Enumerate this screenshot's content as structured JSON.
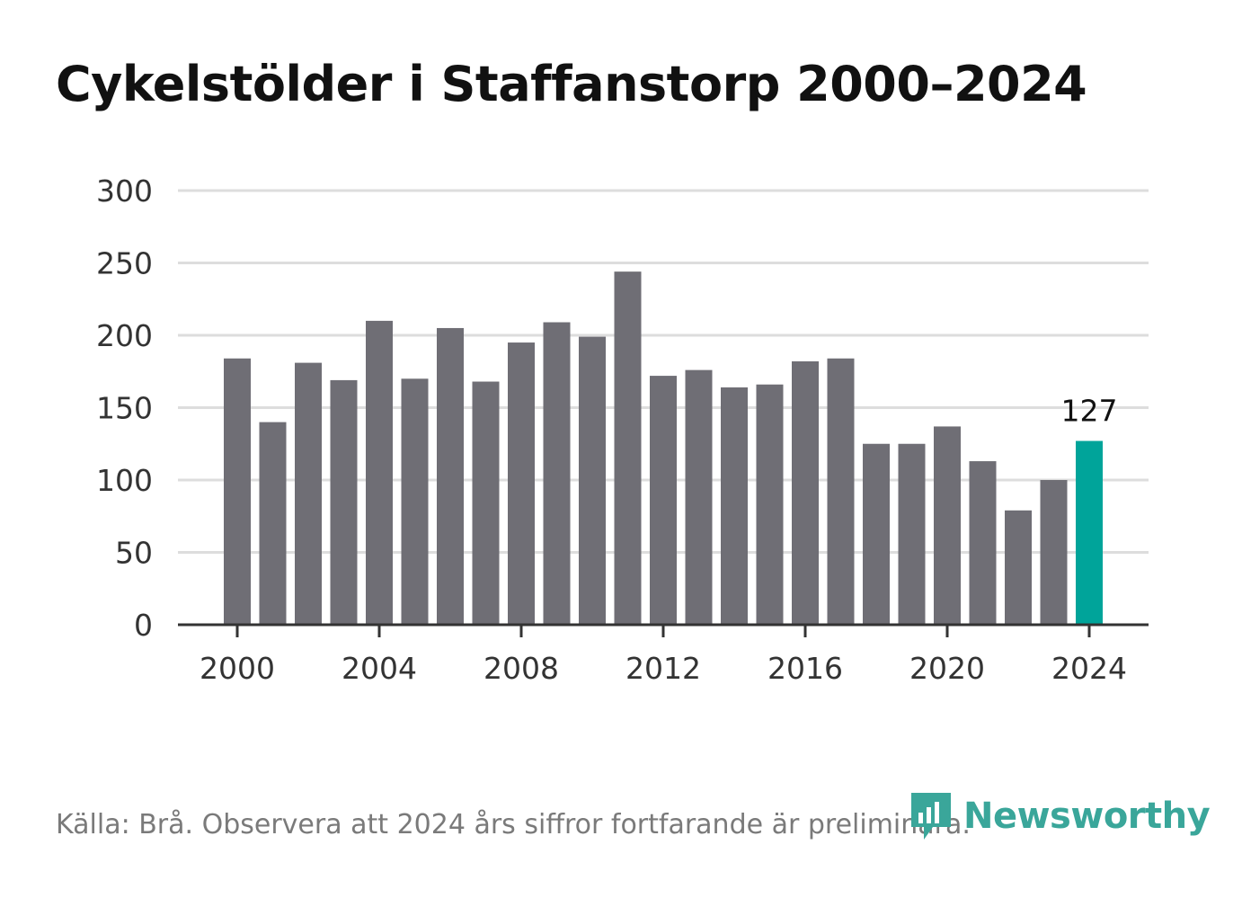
{
  "title": "Cykelstölder i Staffanstorp 2000–2024",
  "source": "Källa: Brå. Observera att 2024 års siffror fortfarande är preliminära.",
  "brand": {
    "name": "Newsworthy",
    "icon": "newsworthy-logo-icon",
    "color": "#3aa69a"
  },
  "colors": {
    "bar": "#6f6e75",
    "highlight": "#00a49a",
    "grid": "#dddddd",
    "axis": "#333333"
  },
  "chart_data": {
    "type": "bar",
    "title": "Cykelstölder i Staffanstorp 2000–2024",
    "xlabel": "",
    "ylabel": "",
    "categories": [
      2000,
      2001,
      2002,
      2003,
      2004,
      2005,
      2006,
      2007,
      2008,
      2009,
      2010,
      2011,
      2012,
      2013,
      2014,
      2015,
      2016,
      2017,
      2018,
      2019,
      2020,
      2021,
      2022,
      2023,
      2024
    ],
    "values": [
      184,
      140,
      181,
      169,
      210,
      170,
      205,
      168,
      195,
      209,
      199,
      244,
      172,
      176,
      164,
      166,
      182,
      184,
      125,
      125,
      137,
      113,
      79,
      100,
      127
    ],
    "highlight": {
      "category": 2024,
      "label": "127"
    },
    "ylim": [
      0,
      300
    ],
    "yticks": [
      0,
      50,
      100,
      150,
      200,
      250,
      300
    ],
    "xticks": [
      2000,
      2004,
      2008,
      2012,
      2016,
      2020,
      2024
    ],
    "grid": true,
    "legend": "none"
  }
}
